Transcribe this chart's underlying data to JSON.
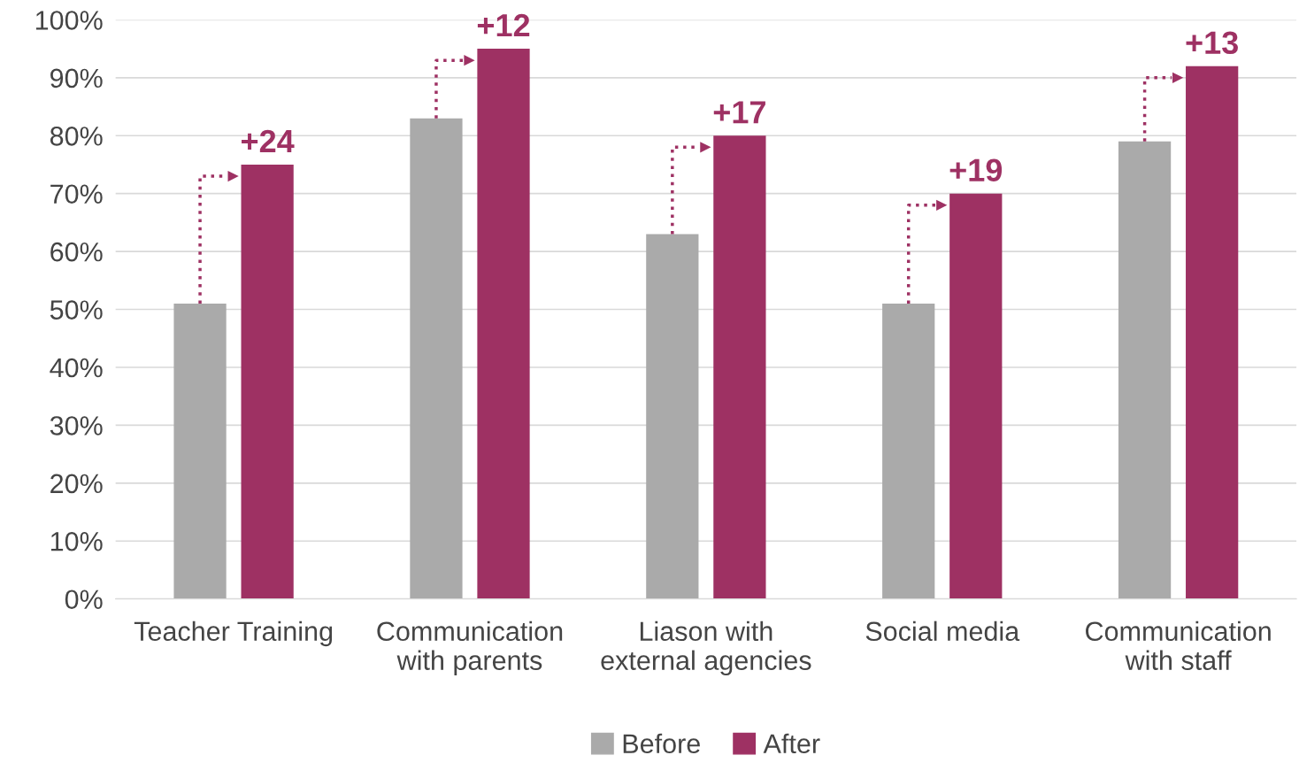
{
  "chart_data": {
    "type": "bar",
    "categories": [
      "Teacher Training",
      "Communication\nwith parents",
      "Liason with\nexternal agencies",
      "Social media",
      "Communication\nwith staff"
    ],
    "series": [
      {
        "name": "Before",
        "color": "#aaaaaa",
        "values": [
          51,
          83,
          63,
          51,
          79
        ]
      },
      {
        "name": "After",
        "color": "#9e3163",
        "values": [
          75,
          95,
          80,
          70,
          92
        ]
      }
    ],
    "ylim": [
      0,
      100
    ],
    "yticks": [
      {
        "value": 0,
        "label": "0%"
      },
      {
        "value": 10,
        "label": "10%"
      },
      {
        "value": 20,
        "label": "20%"
      },
      {
        "value": 30,
        "label": "30%"
      },
      {
        "value": 40,
        "label": "40%"
      },
      {
        "value": 50,
        "label": "50%"
      },
      {
        "value": 60,
        "label": "60%"
      },
      {
        "value": 70,
        "label": "70%"
      },
      {
        "value": 80,
        "label": "80%"
      },
      {
        "value": 90,
        "label": "90%"
      },
      {
        "value": 100,
        "label": "100%"
      }
    ],
    "annotations": [
      "+24",
      "+12",
      "+17",
      "+19",
      "+13"
    ],
    "grid": "y",
    "legend": "bottom"
  }
}
